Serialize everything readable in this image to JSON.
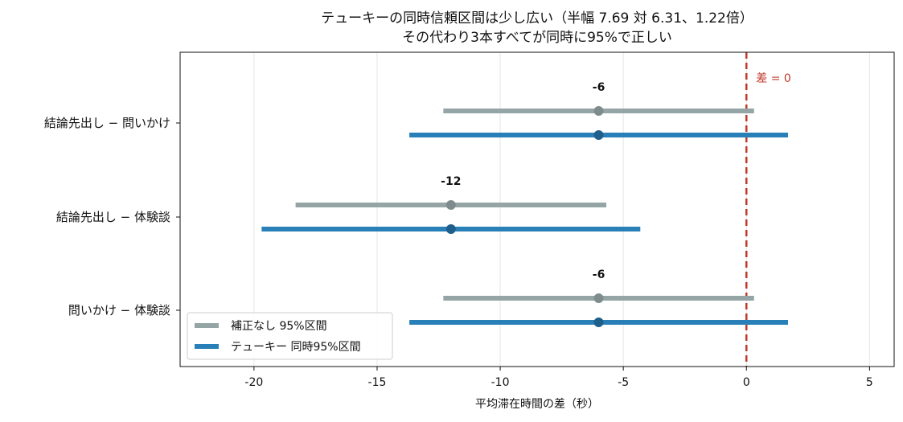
{
  "chart_data": {
    "type": "errorbar",
    "title": [
      "テューキーの同時信頼区間は少し広い（半幅 7.69 対 6.31、1.22倍）",
      "その代わり3本すべてが同時に95%で正しい"
    ],
    "xlabel": "平均滞在時間の差（秒）",
    "xlim": [
      -23,
      6
    ],
    "xticks": [
      -20,
      -15,
      -10,
      -5,
      0,
      5
    ],
    "categories": [
      "結論先出し − 問いかけ",
      "結論先出し − 体験談",
      "問いかけ − 体験談"
    ],
    "estimates": [
      -6,
      -12,
      -6
    ],
    "estimate_labels": [
      "-6",
      "-12",
      "-6"
    ],
    "series": [
      {
        "name": "補正なし 95%区間",
        "color": "#95a5a6",
        "marker_color": "#7f8c8d",
        "lower": [
          -12.31,
          -18.31,
          -12.31
        ],
        "upper": [
          0.31,
          -5.69,
          0.31
        ]
      },
      {
        "name": "テューキー 同時95%区間",
        "color": "#2980b9",
        "marker_color": "#1f5f8b",
        "lower": [
          -13.69,
          -19.69,
          -13.69
        ],
        "upper": [
          1.69,
          -4.31,
          1.69
        ]
      }
    ],
    "reference_line": {
      "x": 0,
      "label": "差 = 0",
      "color": "#c0392b"
    },
    "grid": "x",
    "legend_position": "lower-left"
  }
}
